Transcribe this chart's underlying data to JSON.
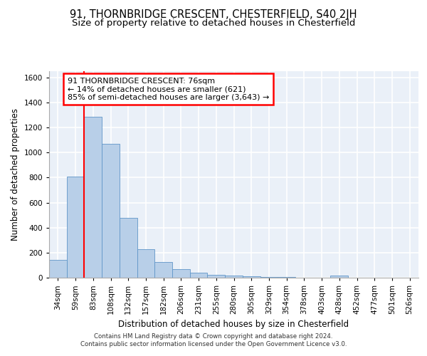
{
  "title_line1": "91, THORNBRIDGE CRESCENT, CHESTERFIELD, S40 2JH",
  "title_line2": "Size of property relative to detached houses in Chesterfield",
  "xlabel": "Distribution of detached houses by size in Chesterfield",
  "ylabel": "Number of detached properties",
  "footer_line1": "Contains HM Land Registry data © Crown copyright and database right 2024.",
  "footer_line2": "Contains public sector information licensed under the Open Government Licence v3.0.",
  "bin_labels": [
    "34sqm",
    "59sqm",
    "83sqm",
    "108sqm",
    "132sqm",
    "157sqm",
    "182sqm",
    "206sqm",
    "231sqm",
    "255sqm",
    "280sqm",
    "305sqm",
    "329sqm",
    "354sqm",
    "378sqm",
    "403sqm",
    "428sqm",
    "452sqm",
    "477sqm",
    "501sqm",
    "526sqm"
  ],
  "bar_heights": [
    140,
    810,
    1285,
    1070,
    480,
    230,
    125,
    68,
    40,
    22,
    15,
    10,
    5,
    3,
    2,
    2,
    15,
    0,
    0,
    0,
    0
  ],
  "bar_color": "#b8cfe8",
  "bar_edge_color": "#6096c8",
  "bar_width": 1.0,
  "red_line_x": 1.5,
  "annotation_box_text": "91 THORNBRIDGE CRESCENT: 76sqm\n← 14% of detached houses are smaller (621)\n85% of semi-detached houses are larger (3,643) →",
  "ylim": [
    0,
    1650
  ],
  "yticks": [
    0,
    200,
    400,
    600,
    800,
    1000,
    1200,
    1400,
    1600
  ],
  "background_color": "#eaf0f8",
  "grid_color": "#d8e4f0",
  "title_fontsize": 10.5,
  "subtitle_fontsize": 9.5,
  "axis_label_fontsize": 8.5,
  "tick_fontsize": 7.5,
  "annotation_fontsize": 8.0,
  "ylabel_fontsize": 8.5
}
